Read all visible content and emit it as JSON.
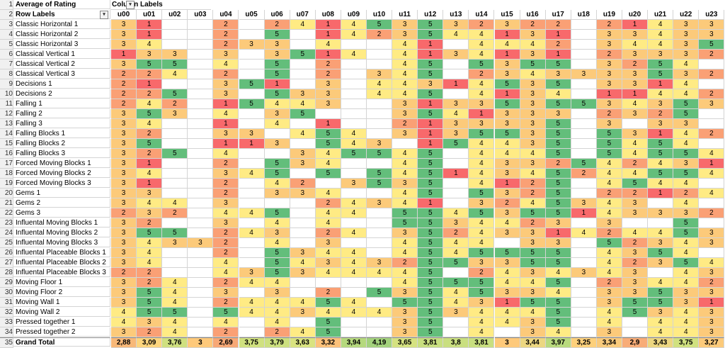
{
  "pivot": {
    "value_title": "Average of Rating",
    "col_labels_title": "Column Labels",
    "row_labels_title": "Row Labels",
    "columns": [
      "u00",
      "u01",
      "u02",
      "u03",
      "u04",
      "u05",
      "u06",
      "u07",
      "u08",
      "u09",
      "u10",
      "u11",
      "u12",
      "u13",
      "u14",
      "u15",
      "u16",
      "u17",
      "u18",
      "u19",
      "u20",
      "u21",
      "u22",
      "u23"
    ],
    "rows": [
      {
        "label": "Classic Horizontal 1",
        "values": [
          "3",
          "1",
          "",
          "",
          "2",
          "",
          "2",
          "4",
          "1",
          "4",
          "5",
          "3",
          "5",
          "3",
          "2",
          "3",
          "2",
          "2",
          "",
          "2",
          "1",
          "4",
          "3",
          "3"
        ]
      },
      {
        "label": "Classic Horizontal 2",
        "values": [
          "3",
          "1",
          "",
          "",
          "2",
          "",
          "5",
          "",
          "1",
          "4",
          "2",
          "3",
          "5",
          "4",
          "4",
          "1",
          "3",
          "1",
          "",
          "3",
          "3",
          "4",
          "3",
          "3"
        ]
      },
      {
        "label": "Classic Horizontal 3",
        "values": [
          "3",
          "4",
          "",
          "",
          "2",
          "3",
          "3",
          "",
          "4",
          "",
          "",
          "4",
          "1",
          "",
          "4",
          "4",
          "4",
          "2",
          "",
          "3",
          "4",
          "4",
          "3",
          "5"
        ]
      },
      {
        "label": "Classical Vertical 1",
        "values": [
          "1",
          "3",
          "3",
          "",
          "3",
          "",
          "3",
          "5",
          "1",
          "4",
          "",
          "4",
          "1",
          "3",
          "4",
          "1",
          "3",
          "1",
          "",
          "2",
          "3",
          "3",
          "3",
          "2"
        ]
      },
      {
        "label": "Classical Vertical 2",
        "values": [
          "3",
          "5",
          "5",
          "",
          "4",
          "",
          "5",
          "",
          "2",
          "",
          "",
          "4",
          "5",
          "",
          "5",
          "3",
          "5",
          "5",
          "",
          "3",
          "2",
          "5",
          "4",
          ""
        ]
      },
      {
        "label": "Classical Vertical 3",
        "values": [
          "2",
          "2",
          "4",
          "",
          "2",
          "",
          "5",
          "",
          "2",
          "",
          "3",
          "4",
          "5",
          "",
          "2",
          "3",
          "4",
          "3",
          "3",
          "3",
          "3",
          "5",
          "3",
          "2"
        ]
      },
      {
        "label": "Decisions 1",
        "values": [
          "2",
          "1",
          "",
          "",
          "3",
          "5",
          "1",
          "",
          "3",
          "",
          "4",
          "4",
          "3",
          "1",
          "4",
          "5",
          "3",
          "5",
          "",
          "3",
          "3",
          "1",
          "4",
          ""
        ]
      },
      {
        "label": "Decisions 2",
        "values": [
          "2",
          "2",
          "5",
          "",
          "3",
          "",
          "5",
          "3",
          "3",
          "",
          "4",
          "4",
          "5",
          "",
          "4",
          "1",
          "3",
          "4",
          "",
          "1",
          "1",
          "4",
          "4",
          "2"
        ]
      },
      {
        "label": "Falling 1",
        "values": [
          "2",
          "4",
          "2",
          "",
          "1",
          "5",
          "4",
          "4",
          "3",
          "",
          "",
          "3",
          "1",
          "3",
          "3",
          "5",
          "3",
          "5",
          "5",
          "3",
          "4",
          "3",
          "5",
          "3"
        ]
      },
      {
        "label": "Falling 2",
        "values": [
          "3",
          "5",
          "3",
          "",
          "4",
          "",
          "3",
          "5",
          "",
          "",
          "",
          "3",
          "5",
          "4",
          "1",
          "3",
          "3",
          "3",
          "",
          "2",
          "3",
          "2",
          "5",
          ""
        ]
      },
      {
        "label": "Falling 3",
        "values": [
          "3",
          "4",
          "",
          "",
          "1",
          "",
          "4",
          "",
          "1",
          "",
          "",
          "2",
          "1",
          "3",
          "3",
          "3",
          "3",
          "5",
          "",
          "3",
          "",
          "3",
          "3",
          ""
        ]
      },
      {
        "label": "Falling Blocks 1",
        "values": [
          "3",
          "2",
          "",
          "",
          "3",
          "3",
          "",
          "4",
          "5",
          "4",
          "",
          "3",
          "1",
          "3",
          "5",
          "5",
          "3",
          "5",
          "",
          "5",
          "3",
          "1",
          "4",
          "2"
        ]
      },
      {
        "label": "Falling Blocks 2",
        "values": [
          "3",
          "5",
          "",
          "",
          "1",
          "1",
          "3",
          "",
          "5",
          "4",
          "3",
          "",
          "1",
          "5",
          "4",
          "4",
          "3",
          "5",
          "",
          "5",
          "4",
          "5",
          "4",
          ""
        ]
      },
      {
        "label": "Falling Blocks 3",
        "values": [
          "3",
          "2",
          "5",
          "",
          "4",
          "",
          "",
          "3",
          "4",
          "5",
          "5",
          "4",
          "5",
          "",
          "4",
          "4",
          "4",
          "5",
          "",
          "5",
          "4",
          "5",
          "5",
          "4"
        ]
      },
      {
        "label": "Forced Moving Blocks 1",
        "values": [
          "3",
          "1",
          "",
          "",
          "2",
          "",
          "5",
          "3",
          "4",
          "",
          "",
          "4",
          "5",
          "",
          "4",
          "3",
          "3",
          "2",
          "5",
          "4",
          "2",
          "4",
          "3",
          "1"
        ]
      },
      {
        "label": "Forced Moving Blocks 2",
        "values": [
          "3",
          "4",
          "",
          "",
          "3",
          "4",
          "5",
          "",
          "5",
          "",
          "5",
          "4",
          "5",
          "1",
          "4",
          "3",
          "4",
          "5",
          "2",
          "4",
          "4",
          "5",
          "5",
          "4"
        ]
      },
      {
        "label": "Forced Moving Blocks 3",
        "values": [
          "3",
          "1",
          "",
          "",
          "2",
          "",
          "4",
          "2",
          "",
          "3",
          "5",
          "3",
          "5",
          "",
          "4",
          "1",
          "2",
          "5",
          "",
          "4",
          "5",
          "4",
          "4",
          ""
        ]
      },
      {
        "label": "Gems 1",
        "values": [
          "3",
          "3",
          "",
          "",
          "2",
          "",
          "3",
          "3",
          "4",
          "",
          "",
          "4",
          "5",
          "",
          "5",
          "3",
          "2",
          "5",
          "",
          "2",
          "2",
          "1",
          "2",
          "4"
        ]
      },
      {
        "label": "Gems 2",
        "values": [
          "3",
          "4",
          "4",
          "",
          "3",
          "",
          "",
          "",
          "2",
          "4",
          "3",
          "4",
          "1",
          "",
          "3",
          "2",
          "4",
          "5",
          "3",
          "4",
          "3",
          "",
          "4",
          ""
        ]
      },
      {
        "label": "Gems 3",
        "values": [
          "2",
          "3",
          "2",
          "",
          "4",
          "4",
          "5",
          "",
          "4",
          "4",
          "",
          "5",
          "5",
          "4",
          "5",
          "3",
          "5",
          "5",
          "1",
          "4",
          "3",
          "3",
          "3",
          "2"
        ]
      },
      {
        "label": "Influental Moving Blocks 1",
        "values": [
          "3",
          "2",
          "",
          "",
          "3",
          "",
          "4",
          "",
          "4",
          "",
          "",
          "5",
          "5",
          "3",
          "4",
          "4",
          "2",
          "3",
          "",
          "3",
          "",
          "",
          "5",
          ""
        ]
      },
      {
        "label": "Influental Moving Blocks 2",
        "values": [
          "3",
          "5",
          "5",
          "",
          "2",
          "4",
          "3",
          "",
          "2",
          "4",
          "",
          "3",
          "5",
          "2",
          "4",
          "3",
          "3",
          "1",
          "4",
          "2",
          "4",
          "4",
          "5",
          "3"
        ]
      },
      {
        "label": "Influental Moving Blocks 3",
        "values": [
          "3",
          "4",
          "3",
          "3",
          "2",
          "",
          "4",
          "",
          "3",
          "",
          "",
          "4",
          "5",
          "4",
          "4",
          "",
          "3",
          "3",
          "",
          "5",
          "2",
          "3",
          "4",
          "3"
        ]
      },
      {
        "label": "Influental Placeable Blocks 1",
        "values": [
          "3",
          "4",
          "",
          "",
          "2",
          "",
          "5",
          "3",
          "4",
          "4",
          "",
          "4",
          "5",
          "4",
          "5",
          "5",
          "5",
          "5",
          "",
          "4",
          "3",
          "5",
          "4",
          ""
        ]
      },
      {
        "label": "Influental Placeable Blocks 2",
        "values": [
          "3",
          "4",
          "",
          "",
          "4",
          "",
          "5",
          "4",
          "3",
          "4",
          "3",
          "2",
          "5",
          "5",
          "3",
          "3",
          "5",
          "5",
          "",
          "4",
          "2",
          "3",
          "5",
          "4"
        ]
      },
      {
        "label": "Influental Placeable Blocks 3",
        "values": [
          "2",
          "2",
          "",
          "",
          "4",
          "3",
          "5",
          "3",
          "4",
          "4",
          "4",
          "4",
          "5",
          "",
          "2",
          "4",
          "3",
          "4",
          "3",
          "4",
          "3",
          "",
          "4",
          "3"
        ]
      },
      {
        "label": "Moving Floor 1",
        "values": [
          "3",
          "2",
          "4",
          "",
          "2",
          "4",
          "4",
          "",
          "",
          "",
          "",
          "4",
          "5",
          "5",
          "5",
          "4",
          "4",
          "5",
          "",
          "2",
          "3",
          "4",
          "4",
          "2"
        ]
      },
      {
        "label": "Moving Floor 2",
        "values": [
          "3",
          "5",
          "4",
          "",
          "3",
          "",
          "3",
          "",
          "2",
          "",
          "5",
          "3",
          "5",
          "4",
          "5",
          "3",
          "3",
          "4",
          "",
          "3",
          "3",
          "5",
          "3",
          "3"
        ]
      },
      {
        "label": "Moving Wall 1",
        "values": [
          "3",
          "5",
          "4",
          "",
          "2",
          "4",
          "4",
          "4",
          "5",
          "4",
          "",
          "5",
          "5",
          "4",
          "3",
          "1",
          "5",
          "5",
          "",
          "3",
          "5",
          "5",
          "3",
          "1"
        ]
      },
      {
        "label": "Moving Wall 2",
        "values": [
          "4",
          "5",
          "5",
          "",
          "5",
          "4",
          "4",
          "3",
          "4",
          "4",
          "4",
          "3",
          "5",
          "3",
          "4",
          "4",
          "4",
          "5",
          "",
          "4",
          "5",
          "3",
          "4",
          "3"
        ]
      },
      {
        "label": "Pressed together 1",
        "values": [
          "4",
          "3",
          "4",
          "",
          "4",
          "",
          "4",
          "",
          "5",
          "",
          "",
          "3",
          "5",
          "",
          "4",
          "4",
          "3",
          "5",
          "",
          "4",
          "",
          "4",
          "4",
          "3"
        ]
      },
      {
        "label": "Pressed together 2",
        "values": [
          "3",
          "2",
          "4",
          "",
          "2",
          "",
          "2",
          "4",
          "5",
          "",
          "",
          "3",
          "5",
          "",
          "4",
          "",
          "3",
          "4",
          "",
          "3",
          "",
          "4",
          "4",
          "3"
        ]
      }
    ],
    "grand_total_label": "Grand Total",
    "grand_total": [
      "2,88",
      "3,09",
      "3,76",
      "3",
      "2,69",
      "3,75",
      "3,79",
      "3,63",
      "3,32",
      "3,94",
      "4,19",
      "3,65",
      "3,81",
      "3,8",
      "3,81",
      "3",
      "3,44",
      "3,97",
      "3,25",
      "3,34",
      "2,9",
      "3,43",
      "3,75",
      "3,27"
    ],
    "grand_colors": [
      "#f8b878",
      "#fdd57d",
      "#cfe07f",
      "#fec97a",
      "#f7a876",
      "#d0e17f",
      "#cce07f",
      "#d9e380",
      "#fcc17a",
      "#b5d97d",
      "#a3d27c",
      "#d5e280",
      "#c8df7f",
      "#c9df7f",
      "#c8df7f",
      "#fec97a",
      "#ecd781",
      "#b8da7d",
      "#fdd07b",
      "#f9ca7b",
      "#f8ac77",
      "#ecd680",
      "#d0e17f",
      "#fcca7a"
    ],
    "filter_icon": "dropdown-filter-icon"
  },
  "colors": {
    "v1": "#f8696b",
    "v2": "#faa075",
    "v3": "#fcca7a",
    "v4": "#ffeb84",
    "v5": "#63be7b",
    "row_header_bg": "#f0f0f0",
    "grid": "#d4d4d4"
  }
}
